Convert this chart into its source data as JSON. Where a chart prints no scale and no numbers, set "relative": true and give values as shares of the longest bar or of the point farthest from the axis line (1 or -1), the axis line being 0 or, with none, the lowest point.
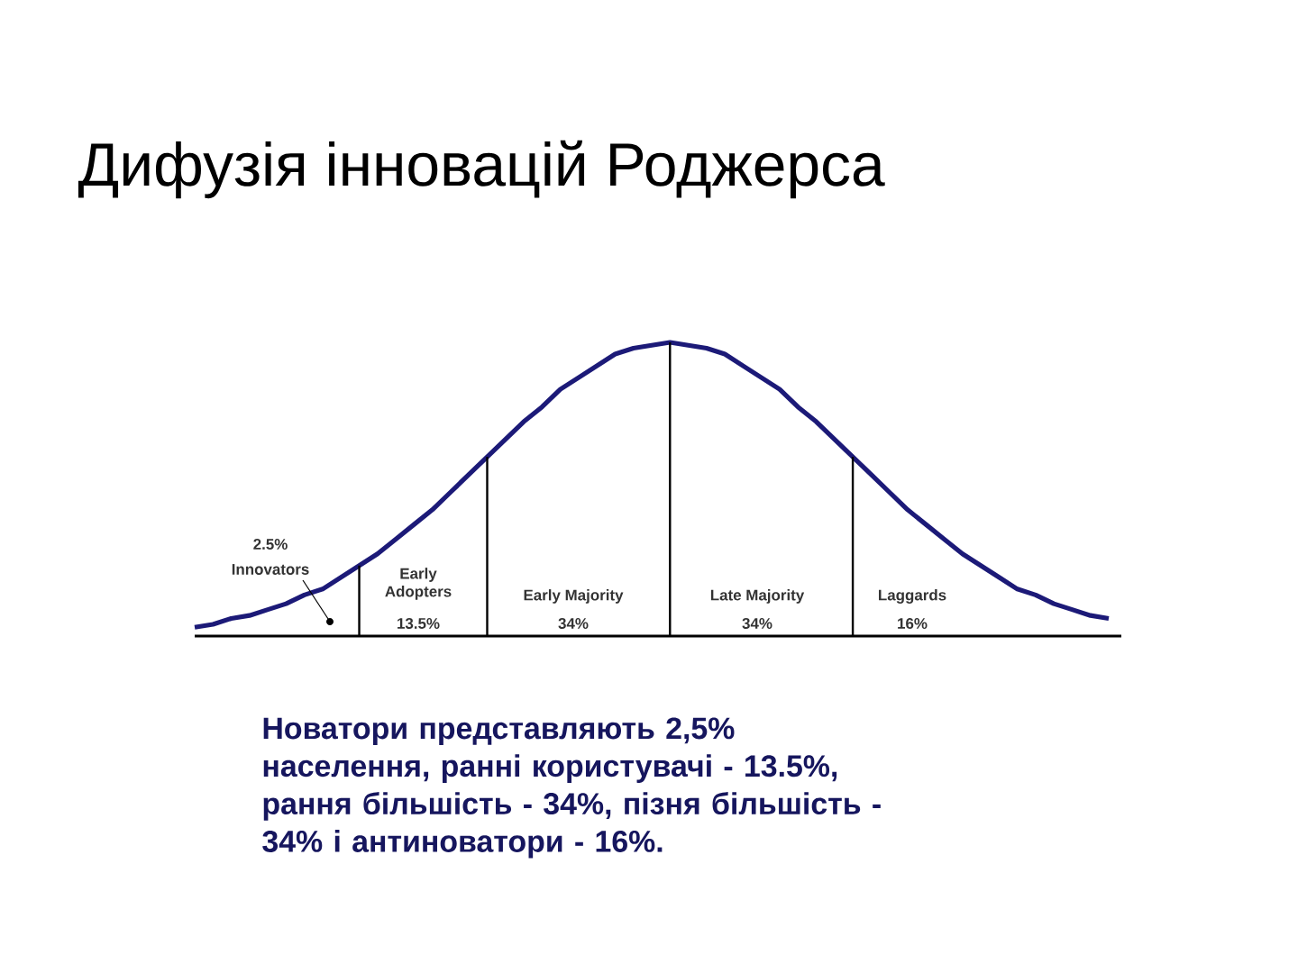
{
  "chart_data": {
    "type": "line",
    "relative": true,
    "title": "Дифузія інновацій Роджерса",
    "categories": [
      null,
      null,
      null,
      null,
      null,
      null,
      null,
      null,
      null,
      null,
      null,
      null,
      null,
      null,
      null,
      null,
      null,
      null,
      null,
      null,
      null,
      null,
      null,
      null,
      null,
      null,
      null,
      null,
      null,
      null,
      null,
      null,
      null,
      null,
      null,
      null,
      null,
      null,
      null,
      null,
      null,
      null,
      null,
      null,
      null,
      null,
      null,
      null,
      null,
      null,
      null
    ],
    "series": [
      {
        "color": "#1c1a78",
        "values": [
          0.03,
          0.04,
          0.06,
          0.07,
          0.09,
          0.11,
          0.14,
          0.16,
          0.2,
          0.24,
          0.28,
          0.33,
          0.38,
          0.43,
          0.49,
          0.55,
          0.61,
          0.67,
          0.73,
          0.78,
          0.84,
          0.88,
          0.92,
          0.96,
          0.98,
          0.99,
          1.0,
          0.99,
          0.98,
          0.96,
          0.92,
          0.88,
          0.84,
          0.78,
          0.73,
          0.67,
          0.61,
          0.55,
          0.49,
          0.43,
          0.38,
          0.33,
          0.28,
          0.24,
          0.2,
          0.16,
          0.14,
          0.11,
          0.09,
          0.07,
          0.06
        ]
      }
    ],
    "annotations": [
      "2.5%",
      "Innovators",
      "Early Adopters",
      "13.5%",
      "Early Majority",
      "34%",
      "Late Majority",
      "34%",
      "Laggards",
      "16%",
      "Новатори представляють 2,5% населення, ранні користувачі - 13.5%, рання більшість - 34%, пізня більшість - 34% і антиноватори - 16%."
    ]
  }
}
